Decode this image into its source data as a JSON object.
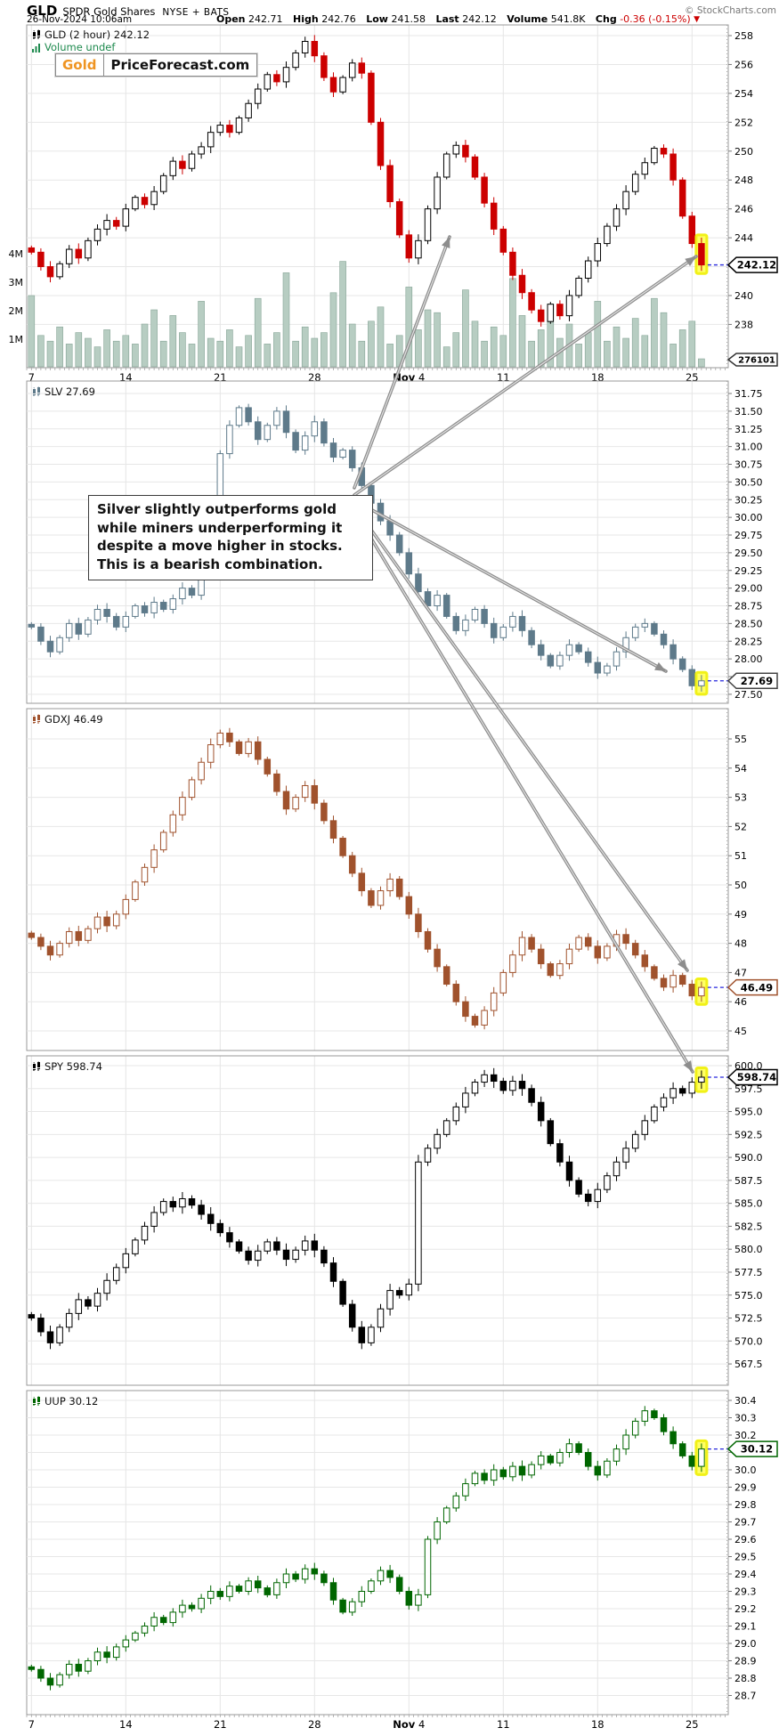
{
  "header": {
    "symbol": "GLD",
    "name": "SPDR Gold Shares",
    "exchange": "NYSE + BATS",
    "copyright": "© StockCharts.com",
    "datetime": "26-Nov-2024 10:06am",
    "quote": {
      "open_label": "Open",
      "open": "242.71",
      "high_label": "High",
      "high": "242.76",
      "low_label": "Low",
      "low": "241.58",
      "last_label": "Last",
      "last": "242.12",
      "volume_label": "Volume",
      "volume": "541.8K",
      "chg_label": "Chg",
      "chg": "-0.36 (-0.15%)",
      "chg_arrow": "▼"
    }
  },
  "logo": {
    "part1": "Gold",
    "part2": "PriceForecast.com"
  },
  "annotation": {
    "text": "Silver slightly outperforms gold while miners underperforming it despite a move higher in stocks. This is a bearish combination."
  },
  "x_axis": {
    "labels": [
      "7",
      "14",
      "21",
      "28",
      "Nov 4",
      "11",
      "18",
      "25"
    ]
  },
  "colors": {
    "gld_up": "#000000",
    "gld_down": "#cc0000",
    "slv": "#5e7a8a",
    "gdxj": "#a0522d",
    "spy": "#000000",
    "uup": "#006600",
    "volume_bar": "#b7cdc2",
    "grid": "#e6e6e6",
    "dashed_line": "#2626dd",
    "highlight": "#ffff55",
    "arrow": "#8d8d8d",
    "logo_orange": "#ef9421"
  },
  "chart_data": [
    {
      "type": "candlestick",
      "symbol": "GLD",
      "timeframe": "2 hour",
      "label": "GLD (2 hour) 242.12",
      "last": 242.12,
      "tag": "242.12",
      "tag_color": "#000000",
      "color_up": "#000000",
      "color_down": "#cc0000",
      "wick": 0.45,
      "ticks": [
        258,
        256,
        254,
        252,
        250,
        248,
        246,
        244,
        242,
        240,
        238
      ],
      "tick_labels": [
        "258",
        "256",
        "254",
        "252",
        "250",
        "248",
        "246",
        "244",
        "",
        "240",
        "238"
      ],
      "closes": [
        243.0,
        242.0,
        241.3,
        242.2,
        243.2,
        242.6,
        243.8,
        244.6,
        245.2,
        244.8,
        246.0,
        246.8,
        246.3,
        247.2,
        248.3,
        249.3,
        248.8,
        249.8,
        250.3,
        251.3,
        251.8,
        251.3,
        252.3,
        253.3,
        254.3,
        255.3,
        254.8,
        255.8,
        256.8,
        257.6,
        256.6,
        255.1,
        254.1,
        255.1,
        256.1,
        255.4,
        252.0,
        249.0,
        246.5,
        244.2,
        242.6,
        243.8,
        246.0,
        248.2,
        249.8,
        250.4,
        249.6,
        248.2,
        246.4,
        244.6,
        243.0,
        241.4,
        240.2,
        239.0,
        238.2,
        239.4,
        238.6,
        240.0,
        241.2,
        242.4,
        243.6,
        244.8,
        246.0,
        247.2,
        248.4,
        249.2,
        250.2,
        249.8,
        248.0,
        245.5,
        243.6,
        242.12
      ],
      "volume": {
        "label": "Volume undef",
        "axis": [
          "4M",
          "3M",
          "2M",
          "1M"
        ],
        "last": "276101",
        "color": "#b7cdc2",
        "stroke": "#86a496",
        "bars": [
          2.5,
          1.1,
          0.9,
          1.4,
          0.8,
          1.2,
          1.0,
          0.7,
          1.3,
          0.9,
          1.1,
          0.8,
          1.5,
          2.0,
          0.9,
          1.8,
          1.2,
          0.8,
          2.3,
          1.0,
          0.9,
          1.3,
          0.7,
          1.1,
          2.4,
          0.8,
          1.2,
          3.3,
          0.9,
          1.4,
          1.0,
          1.2,
          2.6,
          3.7,
          1.5,
          0.9,
          1.6,
          2.1,
          0.8,
          1.1,
          2.8,
          1.3,
          2.0,
          1.9,
          0.7,
          1.2,
          2.7,
          1.6,
          0.9,
          1.4,
          1.1,
          3.1,
          1.8,
          0.9,
          1.3,
          2.2,
          1.0,
          1.5,
          0.8,
          1.2,
          2.3,
          0.9,
          1.4,
          1.0,
          1.7,
          1.1,
          2.4,
          1.9,
          0.8,
          1.3,
          1.6,
          0.28
        ]
      }
    },
    {
      "type": "candlestick",
      "symbol": "SLV",
      "label": "SLV 27.69",
      "last": 27.69,
      "tag": "27.69",
      "tag_color": "#444444",
      "color": "#5e7a8a",
      "wick": 0.09,
      "ticks": [
        31.75,
        31.5,
        31.25,
        31.0,
        30.75,
        30.5,
        30.25,
        30.0,
        29.75,
        29.5,
        29.25,
        29.0,
        28.75,
        28.5,
        28.25,
        28.0,
        27.75,
        27.5
      ],
      "tick_labels": [
        "31.75",
        "31.50",
        "31.25",
        "31.00",
        "30.75",
        "30.50",
        "30.25",
        "30.00",
        "29.75",
        "29.50",
        "29.25",
        "29.00",
        "28.75",
        "28.50",
        "28.25",
        "28.00",
        "",
        "27.50"
      ],
      "closes": [
        28.45,
        28.25,
        28.1,
        28.3,
        28.5,
        28.35,
        28.55,
        28.7,
        28.6,
        28.45,
        28.6,
        28.75,
        28.65,
        28.8,
        28.7,
        28.85,
        29.0,
        28.9,
        29.3,
        30.2,
        30.9,
        31.3,
        31.55,
        31.35,
        31.1,
        31.3,
        31.5,
        31.2,
        30.95,
        31.15,
        31.35,
        31.05,
        30.85,
        30.95,
        30.7,
        30.45,
        30.2,
        29.95,
        29.75,
        29.5,
        29.2,
        28.95,
        28.75,
        28.9,
        28.6,
        28.4,
        28.55,
        28.7,
        28.5,
        28.3,
        28.45,
        28.6,
        28.4,
        28.2,
        28.05,
        27.9,
        28.05,
        28.2,
        28.1,
        27.95,
        27.8,
        27.9,
        28.1,
        28.3,
        28.45,
        28.5,
        28.35,
        28.2,
        28.0,
        27.85,
        27.62,
        27.69
      ]
    },
    {
      "type": "candlestick",
      "symbol": "GDXJ",
      "label": "GDXJ 46.49",
      "last": 46.49,
      "tag": "46.49",
      "tag_color": "#a0522d",
      "color": "#a0522d",
      "wick": 0.22,
      "ticks": [
        55,
        54,
        53,
        52,
        51,
        50,
        49,
        48,
        47,
        46,
        45
      ],
      "tick_labels": [
        "55",
        "54",
        "53",
        "52",
        "51",
        "50",
        "49",
        "48",
        "47",
        "46",
        "45"
      ],
      "closes": [
        48.2,
        47.9,
        47.6,
        48.0,
        48.4,
        48.1,
        48.5,
        48.9,
        48.6,
        49.0,
        49.5,
        50.1,
        50.6,
        51.2,
        51.8,
        52.4,
        53.0,
        53.6,
        54.2,
        54.8,
        55.2,
        54.9,
        54.5,
        54.9,
        54.3,
        53.8,
        53.2,
        52.6,
        53.0,
        53.4,
        52.8,
        52.2,
        51.6,
        51.0,
        50.4,
        49.8,
        49.3,
        49.8,
        50.2,
        49.6,
        49.0,
        48.4,
        47.8,
        47.2,
        46.6,
        46.0,
        45.5,
        45.2,
        45.7,
        46.3,
        47.0,
        47.6,
        48.2,
        47.8,
        47.3,
        46.9,
        47.3,
        47.8,
        48.2,
        47.9,
        47.5,
        47.9,
        48.3,
        48.0,
        47.6,
        47.2,
        46.8,
        46.5,
        46.9,
        46.6,
        46.2,
        46.49
      ]
    },
    {
      "type": "candlestick",
      "symbol": "SPY",
      "label": "SPY 598.74",
      "last": 598.74,
      "tag": "598.74",
      "tag_color": "#000000",
      "color": "#000000",
      "wick": 0.8,
      "ticks": [
        600.0,
        597.5,
        595.0,
        592.5,
        590.0,
        587.5,
        585.0,
        582.5,
        580.0,
        577.5,
        575.0,
        572.5,
        570.0,
        567.5
      ],
      "tick_labels": [
        "600.0",
        "597.5",
        "595.0",
        "592.5",
        "590.0",
        "587.5",
        "585.0",
        "582.5",
        "580.0",
        "577.5",
        "575.0",
        "572.5",
        "570.0",
        "567.5"
      ],
      "closes": [
        572.5,
        571.0,
        569.8,
        571.5,
        573.0,
        574.5,
        573.8,
        575.2,
        576.6,
        578.0,
        579.5,
        581.0,
        582.5,
        584.0,
        585.2,
        584.6,
        585.5,
        584.8,
        583.8,
        582.8,
        581.8,
        580.8,
        579.8,
        578.8,
        579.8,
        580.8,
        579.9,
        578.9,
        579.9,
        580.9,
        579.9,
        578.5,
        576.5,
        574.0,
        571.5,
        569.8,
        571.5,
        573.5,
        575.5,
        575.0,
        576.2,
        589.5,
        591.0,
        592.5,
        594.0,
        595.5,
        597.0,
        598.2,
        599.0,
        598.3,
        597.3,
        598.3,
        597.5,
        596.0,
        594.0,
        591.5,
        589.5,
        587.5,
        586.0,
        585.2,
        586.5,
        588.0,
        589.5,
        591.0,
        592.5,
        594.0,
        595.5,
        596.5,
        597.5,
        597.0,
        598.2,
        598.74
      ]
    },
    {
      "type": "candlestick",
      "symbol": "UUP",
      "label": "UUP 30.12",
      "last": 30.12,
      "tag": "30.12",
      "tag_color": "#006600",
      "color": "#006600",
      "wick": 0.035,
      "ticks": [
        30.4,
        30.3,
        30.2,
        30.1,
        30.0,
        29.9,
        29.8,
        29.7,
        29.6,
        29.5,
        29.4,
        29.3,
        29.2,
        29.1,
        29.0,
        28.9,
        28.8,
        28.7
      ],
      "tick_labels": [
        "30.4",
        "30.3",
        "30.2",
        "",
        "30.0",
        "29.9",
        "29.8",
        "29.7",
        "29.6",
        "29.5",
        "29.4",
        "29.3",
        "29.2",
        "29.1",
        "29.0",
        "28.9",
        "28.8",
        "28.7"
      ],
      "closes": [
        28.85,
        28.8,
        28.76,
        28.82,
        28.88,
        28.84,
        28.9,
        28.95,
        28.92,
        28.98,
        29.02,
        29.06,
        29.1,
        29.15,
        29.12,
        29.18,
        29.22,
        29.2,
        29.26,
        29.3,
        29.27,
        29.33,
        29.3,
        29.36,
        29.32,
        29.28,
        29.35,
        29.4,
        29.37,
        29.43,
        29.4,
        29.35,
        29.25,
        29.18,
        29.24,
        29.3,
        29.36,
        29.42,
        29.38,
        29.3,
        29.22,
        29.28,
        29.6,
        29.7,
        29.78,
        29.85,
        29.92,
        29.98,
        29.94,
        30.0,
        29.96,
        30.02,
        29.97,
        30.03,
        30.08,
        30.04,
        30.1,
        30.15,
        30.1,
        30.02,
        29.97,
        30.05,
        30.12,
        30.2,
        30.28,
        30.34,
        30.3,
        30.22,
        30.15,
        30.08,
        30.02,
        30.12
      ]
    }
  ]
}
